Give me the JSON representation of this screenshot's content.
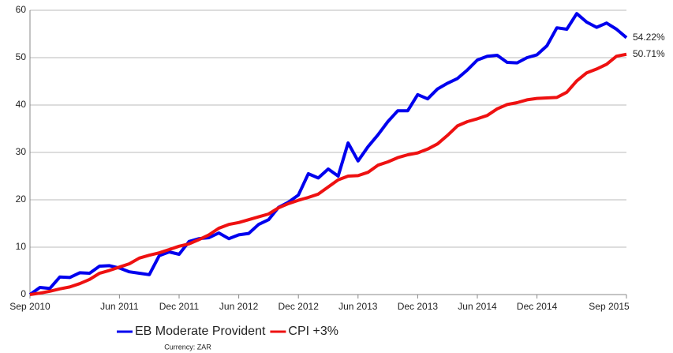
{
  "chart_data": {
    "type": "line",
    "x": [
      "2010-09",
      "2010-10",
      "2010-11",
      "2010-12",
      "2011-01",
      "2011-02",
      "2011-03",
      "2011-04",
      "2011-05",
      "2011-06",
      "2011-07",
      "2011-08",
      "2011-09",
      "2011-10",
      "2011-11",
      "2011-12",
      "2012-01",
      "2012-02",
      "2012-03",
      "2012-04",
      "2012-05",
      "2012-06",
      "2012-07",
      "2012-08",
      "2012-09",
      "2012-10",
      "2012-11",
      "2012-12",
      "2013-01",
      "2013-02",
      "2013-03",
      "2013-04",
      "2013-05",
      "2013-06",
      "2013-07",
      "2013-08",
      "2013-09",
      "2013-10",
      "2013-11",
      "2013-12",
      "2014-01",
      "2014-02",
      "2014-03",
      "2014-04",
      "2014-05",
      "2014-06",
      "2014-07",
      "2014-08",
      "2014-09",
      "2014-10",
      "2014-11",
      "2014-12",
      "2015-01",
      "2015-02",
      "2015-03",
      "2015-04",
      "2015-05",
      "2015-06",
      "2015-07",
      "2015-08",
      "2015-09"
    ],
    "series": [
      {
        "name": "EB Moderate Provident",
        "color": "#0000ee",
        "values": [
          0,
          1.5,
          1.3,
          3.7,
          3.6,
          4.6,
          4.5,
          6.0,
          6.1,
          5.6,
          4.8,
          4.5,
          4.2,
          8.2,
          9.0,
          8.5,
          11.2,
          11.8,
          12.0,
          13.0,
          11.8,
          12.6,
          12.9,
          14.8,
          15.8,
          18.4,
          19.5,
          21.0,
          25.5,
          24.6,
          26.5,
          25.0,
          32.0,
          28.2,
          31.2,
          33.7,
          36.5,
          38.8,
          38.8,
          42.2,
          41.3,
          43.4,
          44.6,
          45.6,
          47.4,
          49.5,
          50.3,
          50.5,
          49.0,
          48.9,
          50.0,
          50.6,
          52.5,
          56.3,
          56.0,
          59.3,
          57.5,
          56.4,
          57.3,
          56.0,
          54.22
        ],
        "value_labels": [
          null,
          null,
          null,
          null,
          null,
          null,
          null,
          null,
          null,
          null,
          null,
          null,
          null,
          null,
          null,
          null,
          null,
          null,
          null,
          null,
          null,
          null,
          null,
          null,
          null,
          null,
          null,
          null,
          null,
          null,
          null,
          null,
          null,
          null,
          null,
          null,
          null,
          null,
          null,
          null,
          null,
          null,
          null,
          null,
          null,
          null,
          null,
          null,
          null,
          null,
          null,
          null,
          null,
          null,
          null,
          null,
          null,
          null,
          null,
          null,
          "54.22%"
        ]
      },
      {
        "name": "CPI +3%",
        "color": "#ee1111",
        "values": [
          0,
          0.3,
          0.7,
          1.2,
          1.6,
          2.3,
          3.2,
          4.5,
          5.1,
          5.8,
          6.5,
          7.7,
          8.3,
          8.8,
          9.5,
          10.2,
          10.7,
          11.6,
          12.6,
          14.0,
          14.8,
          15.2,
          15.8,
          16.4,
          17.0,
          18.3,
          19.2,
          19.9,
          20.5,
          21.2,
          22.7,
          24.2,
          25.0,
          25.1,
          25.8,
          27.3,
          28.0,
          28.9,
          29.5,
          29.9,
          30.7,
          31.8,
          33.6,
          35.6,
          36.5,
          37.1,
          37.8,
          39.2,
          40.1,
          40.5,
          41.1,
          41.4,
          41.5,
          41.6,
          42.7,
          45.1,
          46.8,
          47.6,
          48.6,
          50.3,
          50.71
        ],
        "value_labels": [
          null,
          null,
          null,
          null,
          null,
          null,
          null,
          null,
          null,
          null,
          null,
          null,
          null,
          null,
          null,
          null,
          null,
          null,
          null,
          null,
          null,
          null,
          null,
          null,
          null,
          null,
          null,
          null,
          null,
          null,
          null,
          null,
          null,
          null,
          null,
          null,
          null,
          null,
          null,
          null,
          null,
          null,
          null,
          null,
          null,
          null,
          null,
          null,
          null,
          null,
          null,
          null,
          null,
          null,
          null,
          null,
          null,
          null,
          null,
          null,
          "50.71%"
        ]
      }
    ],
    "xticks": [
      {
        "value": "2010-09",
        "label": "Sep 2010"
      },
      {
        "value": "2011-06",
        "label": "Jun 2011"
      },
      {
        "value": "2011-12",
        "label": "Dec 2011"
      },
      {
        "value": "2012-06",
        "label": "Jun 2012"
      },
      {
        "value": "2012-12",
        "label": "Dec 2012"
      },
      {
        "value": "2013-06",
        "label": "Jun 2013"
      },
      {
        "value": "2013-12",
        "label": "Dec 2013"
      },
      {
        "value": "2014-06",
        "label": "Jun 2014"
      },
      {
        "value": "2014-12",
        "label": "Dec 2014"
      },
      {
        "value": "2015-09",
        "label": "Sep 2015"
      }
    ],
    "ylim": [
      0,
      60
    ],
    "yticks": [
      0,
      10,
      20,
      30,
      40,
      50,
      60
    ],
    "grid": true,
    "caption": "Currency: ZAR"
  }
}
